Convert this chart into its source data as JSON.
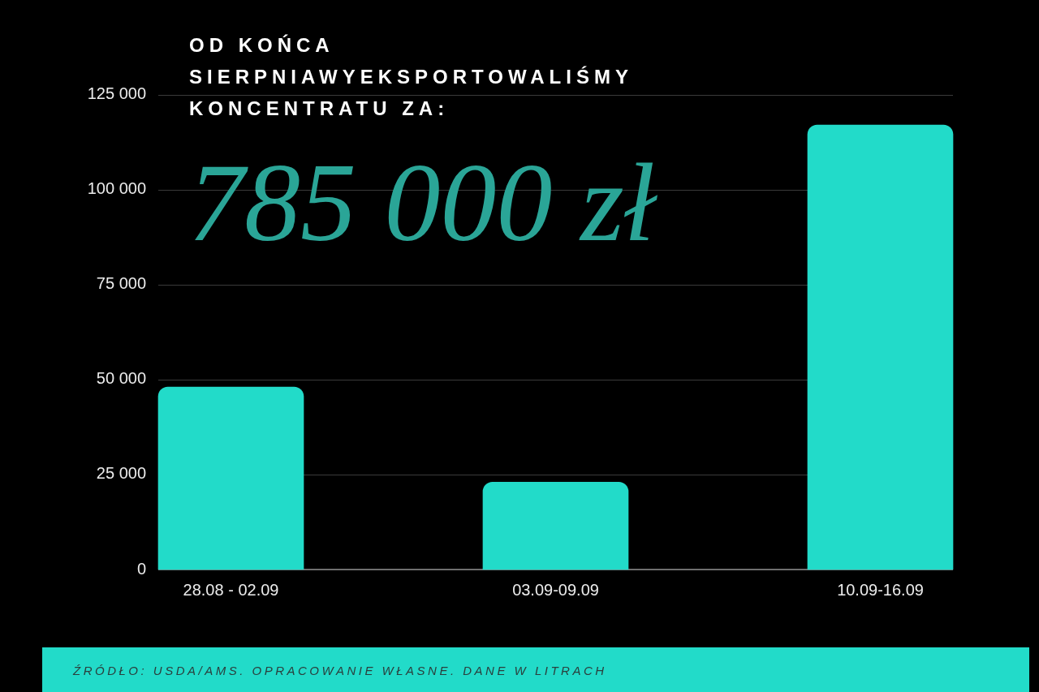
{
  "chart_data": {
    "type": "bar",
    "title": "OD KOŃCA SIERPNIAWYEKSPORTOWALIŚMY KONCENTRATU ZA:",
    "subtitle": "785 000 zł",
    "categories": [
      "28.08 - 02.09",
      "03.09-09.09",
      "10.09-16.09"
    ],
    "values": [
      48000,
      23000,
      117000
    ],
    "color": "#22dbc9",
    "ylim": [
      0,
      125000
    ],
    "yticks": [
      0,
      {
        "value": 25000,
        "label": "25 000"
      },
      {
        "value": 50000,
        "label": "50 000"
      },
      {
        "value": 75000,
        "label": "75 000"
      },
      {
        "value": 100000,
        "label": "100 000"
      },
      {
        "value": 125000,
        "label": "125 000"
      }
    ],
    "grid": "y",
    "annotations": [
      "ŹRÓDŁO: USDA/AMS. OPRACOWANIE WŁASNE. DANE W LITRACH"
    ]
  }
}
